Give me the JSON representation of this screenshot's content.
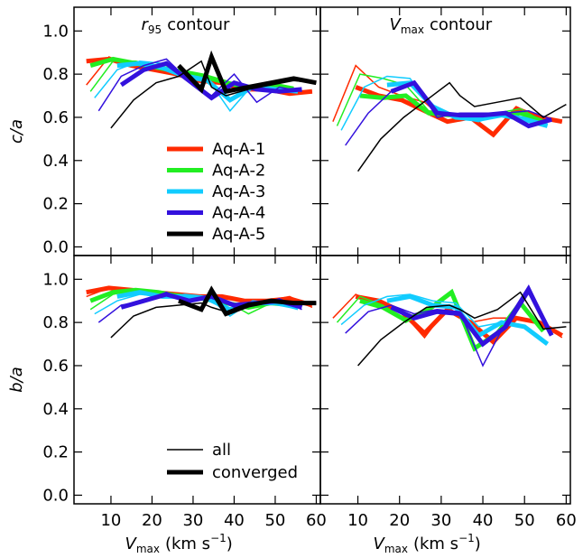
{
  "chart_data": [
    {
      "type": "line",
      "title": {
        "symbol": "r",
        "subscript": "95",
        "text": "contour"
      },
      "ylabel": "c/a",
      "xlim": [
        1,
        61
      ],
      "ylim": [
        -0.04,
        1.11
      ],
      "xticks": [
        10,
        20,
        30,
        40,
        50,
        60
      ],
      "yticks": [
        {
          "value": 0,
          "label": "0.0"
        },
        {
          "value": 0.2,
          "label": "0.2"
        },
        {
          "value": 0.4,
          "label": "0.4"
        },
        {
          "value": 0.6,
          "label": "0.6"
        },
        {
          "value": 0.8,
          "label": "0.8"
        },
        {
          "value": 1,
          "label": "1.0"
        }
      ],
      "xtick_labels": false,
      "ytick_labels": true,
      "legend": true,
      "series": [
        {
          "name": "Aq-A-1",
          "color": "#ff2a00",
          "x": [
            4,
            9.5,
            15,
            20.5,
            26,
            31.5,
            37,
            42.5,
            48,
            53.5,
            59
          ],
          "values": [
            0.75,
            0.88,
            0.84,
            0.82,
            0.8,
            0.78,
            0.77,
            0.74,
            0.73,
            0.71,
            0.72
          ],
          "converged": [
            0.86,
            0.87,
            0.84,
            0.82,
            0.8,
            0.77,
            0.76,
            0.73,
            0.73,
            0.71,
            0.72
          ]
        },
        {
          "name": "Aq-A-2",
          "color": "#22ee22",
          "x": [
            5,
            10.5,
            16,
            21.5,
            27,
            32.5,
            38,
            43.5,
            49,
            54.5
          ],
          "values": [
            0.72,
            0.86,
            0.86,
            0.84,
            0.82,
            0.8,
            0.77,
            0.73,
            0.76,
            0.74
          ],
          "converged": [
            0.84,
            0.87,
            0.85,
            0.83,
            0.81,
            0.79,
            0.76,
            0.74,
            0.75,
            0.73
          ]
        },
        {
          "name": "Aq-A-3",
          "color": "#11ccff",
          "x": [
            6,
            11.5,
            17,
            22.5,
            28,
            33.5,
            39,
            44.5,
            50,
            55.5
          ],
          "values": [
            0.69,
            0.82,
            0.86,
            0.85,
            0.8,
            0.78,
            0.63,
            0.75,
            0.73,
            0.72
          ],
          "converged": [
            null,
            0.84,
            0.85,
            0.83,
            0.79,
            0.77,
            0.68,
            0.74,
            0.73,
            0.72
          ]
        },
        {
          "name": "Aq-A-4",
          "color": "#3311dd",
          "x": [
            7,
            12.5,
            18,
            23.5,
            29,
            34.5,
            40,
            45.5,
            51,
            56.5
          ],
          "values": [
            0.63,
            0.79,
            0.84,
            0.87,
            0.77,
            0.7,
            0.8,
            0.67,
            0.74,
            0.72
          ],
          "converged": [
            null,
            0.75,
            0.82,
            0.85,
            0.77,
            0.69,
            0.76,
            0.73,
            0.72,
            0.73
          ]
        },
        {
          "name": "Aq-A-5",
          "color": "#000000",
          "x": [
            10,
            15.5,
            21,
            26.5,
            32,
            34.5,
            38,
            43.5,
            49,
            54.5,
            60
          ],
          "values": [
            0.55,
            0.68,
            0.76,
            0.79,
            0.86,
            0.74,
            0.7,
            0.73,
            0.75,
            0.77,
            0.76
          ],
          "converged": [
            null,
            null,
            null,
            0.84,
            0.73,
            0.88,
            0.72,
            0.74,
            0.76,
            0.78,
            0.76
          ]
        }
      ]
    },
    {
      "type": "line",
      "title": {
        "symbol": "V",
        "subscript": "max",
        "text": "contour"
      },
      "xlim": [
        1,
        61
      ],
      "ylim": [
        -0.04,
        1.11
      ],
      "xticks": [
        10,
        20,
        30,
        40,
        50,
        60
      ],
      "yticks": [
        0,
        0.2,
        0.4,
        0.6,
        0.8,
        1
      ],
      "xtick_labels": false,
      "ytick_labels": false,
      "legend": false,
      "series": [
        {
          "name": "Aq-A-1",
          "color": "#ff2a00",
          "x": [
            4,
            9.5,
            15,
            20.5,
            26,
            31.5,
            37,
            42.5,
            48,
            53.5,
            59
          ],
          "values": [
            0.58,
            0.84,
            0.74,
            0.7,
            0.67,
            0.58,
            0.6,
            0.52,
            0.65,
            0.6,
            0.58
          ],
          "converged": [
            null,
            0.74,
            0.7,
            0.68,
            0.63,
            0.58,
            0.6,
            0.52,
            0.64,
            0.6,
            0.58
          ]
        },
        {
          "name": "Aq-A-2",
          "color": "#22ee22",
          "x": [
            5,
            10.5,
            16,
            21.5,
            27,
            32.5,
            38,
            43.5,
            49,
            54.5
          ],
          "values": [
            0.56,
            0.8,
            0.78,
            0.75,
            0.63,
            0.62,
            0.6,
            0.62,
            0.64,
            0.58
          ],
          "converged": [
            null,
            0.7,
            0.69,
            0.7,
            0.62,
            0.61,
            0.6,
            0.61,
            0.62,
            0.58
          ]
        },
        {
          "name": "Aq-A-3",
          "color": "#11ccff",
          "x": [
            6,
            11.5,
            17,
            22.5,
            28,
            33.5,
            39,
            44.5,
            50,
            55.5
          ],
          "values": [
            0.54,
            0.74,
            0.79,
            0.78,
            0.64,
            0.6,
            0.58,
            0.62,
            0.6,
            0.57
          ],
          "converged": [
            null,
            null,
            0.75,
            0.76,
            0.65,
            0.6,
            0.59,
            0.61,
            0.59,
            0.56
          ]
        },
        {
          "name": "Aq-A-4",
          "color": "#3311dd",
          "x": [
            7,
            12.5,
            18,
            23.5,
            29,
            34.5,
            40,
            45.5,
            51,
            56.5
          ],
          "values": [
            0.47,
            0.62,
            0.72,
            0.76,
            0.6,
            0.62,
            0.62,
            0.62,
            0.63,
            0.59
          ],
          "converged": [
            null,
            null,
            0.72,
            0.76,
            0.62,
            0.61,
            0.61,
            0.62,
            0.56,
            0.59
          ]
        },
        {
          "name": "Aq-A-5",
          "color": "#000000",
          "x": [
            10,
            15.5,
            21,
            26.5,
            32,
            34.5,
            38,
            43.5,
            49,
            54.5,
            60
          ],
          "values": [
            0.35,
            0.5,
            0.6,
            0.68,
            0.76,
            0.7,
            0.65,
            0.67,
            0.69,
            0.6,
            0.66
          ],
          "converged": [
            null,
            null,
            null,
            null,
            null,
            null,
            null,
            null,
            null,
            null,
            null
          ]
        }
      ]
    },
    {
      "type": "line",
      "ylabel": "b/a",
      "xlabel": {
        "symbol": "V",
        "subscript": "max",
        "text": "(km s",
        "superscript": "−1",
        "close": ")"
      },
      "xlim": [
        1,
        61
      ],
      "ylim": [
        -0.04,
        1.11
      ],
      "xticks": [
        10,
        20,
        30,
        40,
        50,
        60
      ],
      "yticks": [
        {
          "value": 0,
          "label": "0.0"
        },
        {
          "value": 0.2,
          "label": "0.2"
        },
        {
          "value": 0.4,
          "label": "0.4"
        },
        {
          "value": 0.6,
          "label": "0.6"
        },
        {
          "value": 0.8,
          "label": "0.8"
        },
        {
          "value": 1,
          "label": "1.0"
        }
      ],
      "xtick_labels": true,
      "ytick_labels": true,
      "legend": false,
      "width_legend": [
        {
          "label": "all",
          "width": 1.5
        },
        {
          "label": "converged",
          "width": 5
        }
      ],
      "series": [
        {
          "name": "Aq-A-1",
          "color": "#ff2a00",
          "x": [
            4,
            9.5,
            15,
            20.5,
            26,
            31.5,
            37,
            42.5,
            48,
            53.5,
            59
          ],
          "values": [
            0.92,
            0.96,
            0.95,
            0.94,
            0.93,
            0.92,
            0.92,
            0.9,
            0.9,
            0.92,
            0.87
          ],
          "converged": [
            0.94,
            0.96,
            0.95,
            0.94,
            0.93,
            0.92,
            0.92,
            0.9,
            0.9,
            0.91,
            0.88
          ]
        },
        {
          "name": "Aq-A-2",
          "color": "#22ee22",
          "x": [
            5,
            10.5,
            16,
            21.5,
            27,
            32.5,
            38,
            43.5,
            49,
            54.5
          ],
          "values": [
            0.86,
            0.93,
            0.95,
            0.94,
            0.93,
            0.91,
            0.9,
            0.84,
            0.89,
            0.88
          ],
          "converged": [
            0.9,
            0.94,
            0.95,
            0.94,
            0.92,
            0.91,
            0.89,
            0.87,
            0.89,
            0.88
          ]
        },
        {
          "name": "Aq-A-3",
          "color": "#11ccff",
          "x": [
            6,
            11.5,
            17,
            22.5,
            28,
            33.5,
            39,
            44.5,
            50,
            55.5
          ],
          "values": [
            0.84,
            0.9,
            0.93,
            0.92,
            0.93,
            0.92,
            0.83,
            0.9,
            0.89,
            0.86
          ],
          "converged": [
            null,
            0.92,
            0.94,
            0.92,
            0.92,
            0.91,
            0.86,
            0.89,
            0.89,
            0.87
          ]
        },
        {
          "name": "Aq-A-4",
          "color": "#3311dd",
          "x": [
            7,
            12.5,
            18,
            23.5,
            29,
            34.5,
            40,
            45.5,
            51,
            56.5
          ],
          "values": [
            0.8,
            0.88,
            0.9,
            0.94,
            0.89,
            0.93,
            0.87,
            0.88,
            0.91,
            0.86
          ],
          "converged": [
            null,
            0.87,
            0.9,
            0.93,
            0.9,
            0.92,
            0.88,
            0.89,
            0.9,
            0.87
          ]
        },
        {
          "name": "Aq-A-5",
          "color": "#000000",
          "x": [
            10,
            15.5,
            21,
            26.5,
            32,
            34.5,
            38,
            43.5,
            49,
            54.5,
            60
          ],
          "values": [
            0.73,
            0.83,
            0.87,
            0.88,
            0.89,
            0.87,
            0.85,
            0.89,
            0.9,
            0.89,
            0.89
          ],
          "converged": [
            null,
            null,
            null,
            0.9,
            0.86,
            0.95,
            0.84,
            0.88,
            0.9,
            0.89,
            0.89
          ]
        }
      ]
    },
    {
      "type": "line",
      "xlabel": {
        "symbol": "V",
        "subscript": "max",
        "text": "(km s",
        "superscript": "−1",
        "close": ")"
      },
      "xlim": [
        1,
        61
      ],
      "ylim": [
        -0.04,
        1.11
      ],
      "xticks": [
        10,
        20,
        30,
        40,
        50,
        60
      ],
      "yticks": [
        0,
        0.2,
        0.4,
        0.6,
        0.8,
        1
      ],
      "xtick_labels": true,
      "ytick_labels": false,
      "legend": false,
      "series": [
        {
          "name": "Aq-A-1",
          "color": "#ff2a00",
          "x": [
            4,
            9.5,
            15,
            20.5,
            26,
            31.5,
            37,
            42.5,
            48,
            53.5,
            59
          ],
          "values": [
            0.82,
            0.93,
            0.88,
            0.85,
            0.73,
            0.87,
            0.8,
            0.82,
            0.82,
            0.8,
            0.73
          ],
          "converged": [
            null,
            0.92,
            0.9,
            0.85,
            0.75,
            0.86,
            0.8,
            0.71,
            0.82,
            0.8,
            0.74
          ]
        },
        {
          "name": "Aq-A-2",
          "color": "#22ee22",
          "x": [
            5,
            10.5,
            16,
            21.5,
            27,
            32.5,
            38,
            43.5,
            49,
            54.5
          ],
          "values": [
            0.8,
            0.92,
            0.88,
            0.8,
            0.86,
            0.94,
            0.67,
            0.76,
            0.9,
            0.76
          ],
          "converged": [
            null,
            0.9,
            0.87,
            0.81,
            0.86,
            0.94,
            0.68,
            0.75,
            0.89,
            0.76
          ]
        },
        {
          "name": "Aq-A-3",
          "color": "#11ccff",
          "x": [
            6,
            11.5,
            17,
            22.5,
            28,
            33.5,
            39,
            44.5,
            50,
            55.5
          ],
          "values": [
            0.79,
            0.88,
            0.92,
            0.93,
            0.9,
            0.89,
            0.78,
            0.8,
            0.78,
            0.7
          ],
          "converged": [
            null,
            null,
            0.9,
            0.92,
            0.88,
            0.87,
            0.74,
            0.8,
            0.78,
            0.7
          ]
        },
        {
          "name": "Aq-A-4",
          "color": "#3311dd",
          "x": [
            7,
            12.5,
            18,
            23.5,
            29,
            34.5,
            40,
            45.5,
            51,
            56.5
          ],
          "values": [
            0.75,
            0.85,
            0.88,
            0.84,
            0.86,
            0.85,
            0.6,
            0.8,
            0.97,
            0.75
          ],
          "converged": [
            null,
            null,
            0.87,
            0.82,
            0.85,
            0.84,
            0.7,
            0.78,
            0.95,
            0.74
          ]
        },
        {
          "name": "Aq-A-5",
          "color": "#000000",
          "x": [
            10,
            15.5,
            21,
            26.5,
            32,
            34.5,
            38,
            43.5,
            49,
            54.5,
            60
          ],
          "values": [
            0.6,
            0.72,
            0.8,
            0.87,
            0.88,
            0.86,
            0.82,
            0.86,
            0.94,
            0.77,
            0.78
          ],
          "converged": [
            null,
            null,
            null,
            null,
            null,
            null,
            null,
            null,
            null,
            null,
            null
          ]
        }
      ]
    }
  ]
}
